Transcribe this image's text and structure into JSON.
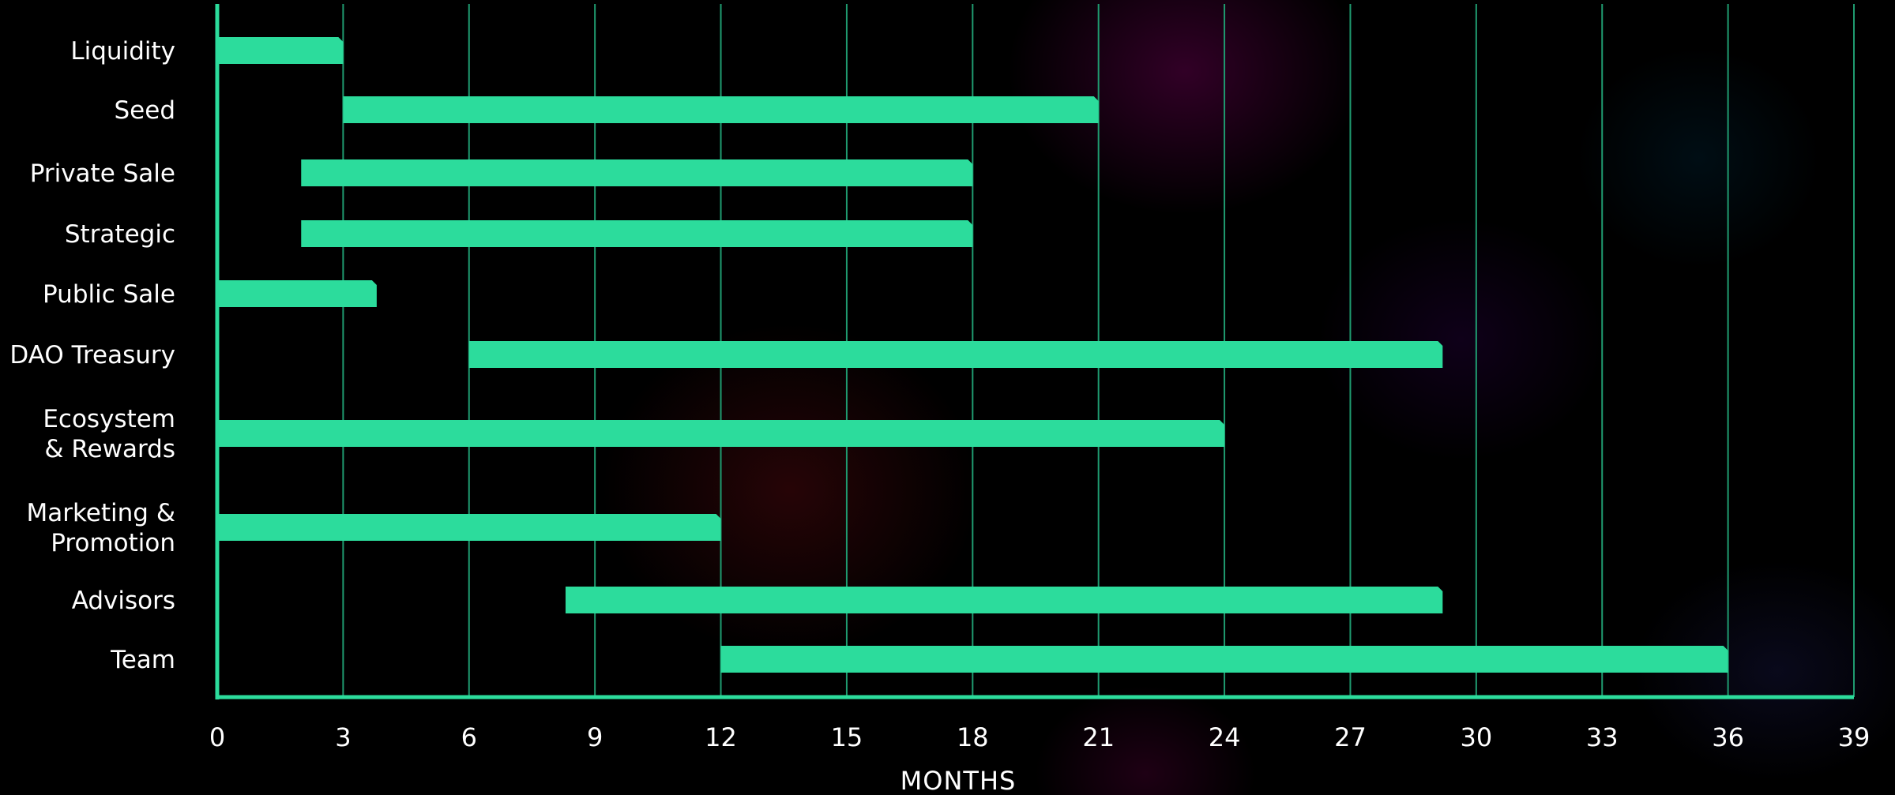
{
  "chart_data": {
    "type": "bar",
    "orientation": "horizontal",
    "categories": [
      [
        "Liquidity"
      ],
      [
        "Seed"
      ],
      [
        "Private Sale"
      ],
      [
        "Strategic"
      ],
      [
        "Public Sale"
      ],
      [
        "DAO Treasury"
      ],
      [
        "Ecosystem",
        "& Rewards"
      ],
      [
        "Marketing &",
        "Promotion"
      ],
      [
        "Advisors"
      ],
      [
        "Team"
      ]
    ],
    "series": [
      {
        "ranges": [
          [
            0,
            3
          ],
          [
            3,
            21
          ],
          [
            2,
            18
          ],
          [
            2,
            18
          ],
          [
            0,
            3.8
          ],
          [
            6,
            29.2
          ],
          [
            0,
            24
          ],
          [
            0,
            12
          ],
          [
            8.3,
            29.2
          ],
          [
            12,
            36
          ]
        ]
      }
    ],
    "xlabel": "MONTHS",
    "xlim": [
      0,
      39
    ],
    "xticks": [
      0,
      3,
      6,
      9,
      12,
      15,
      18,
      21,
      24,
      27,
      30,
      33,
      36,
      39
    ],
    "grid": true,
    "colors": {
      "bar": "#2cdc9c",
      "grid": "#1f9b70",
      "axis": "#2cdc9c",
      "text": "#ffffff"
    }
  }
}
